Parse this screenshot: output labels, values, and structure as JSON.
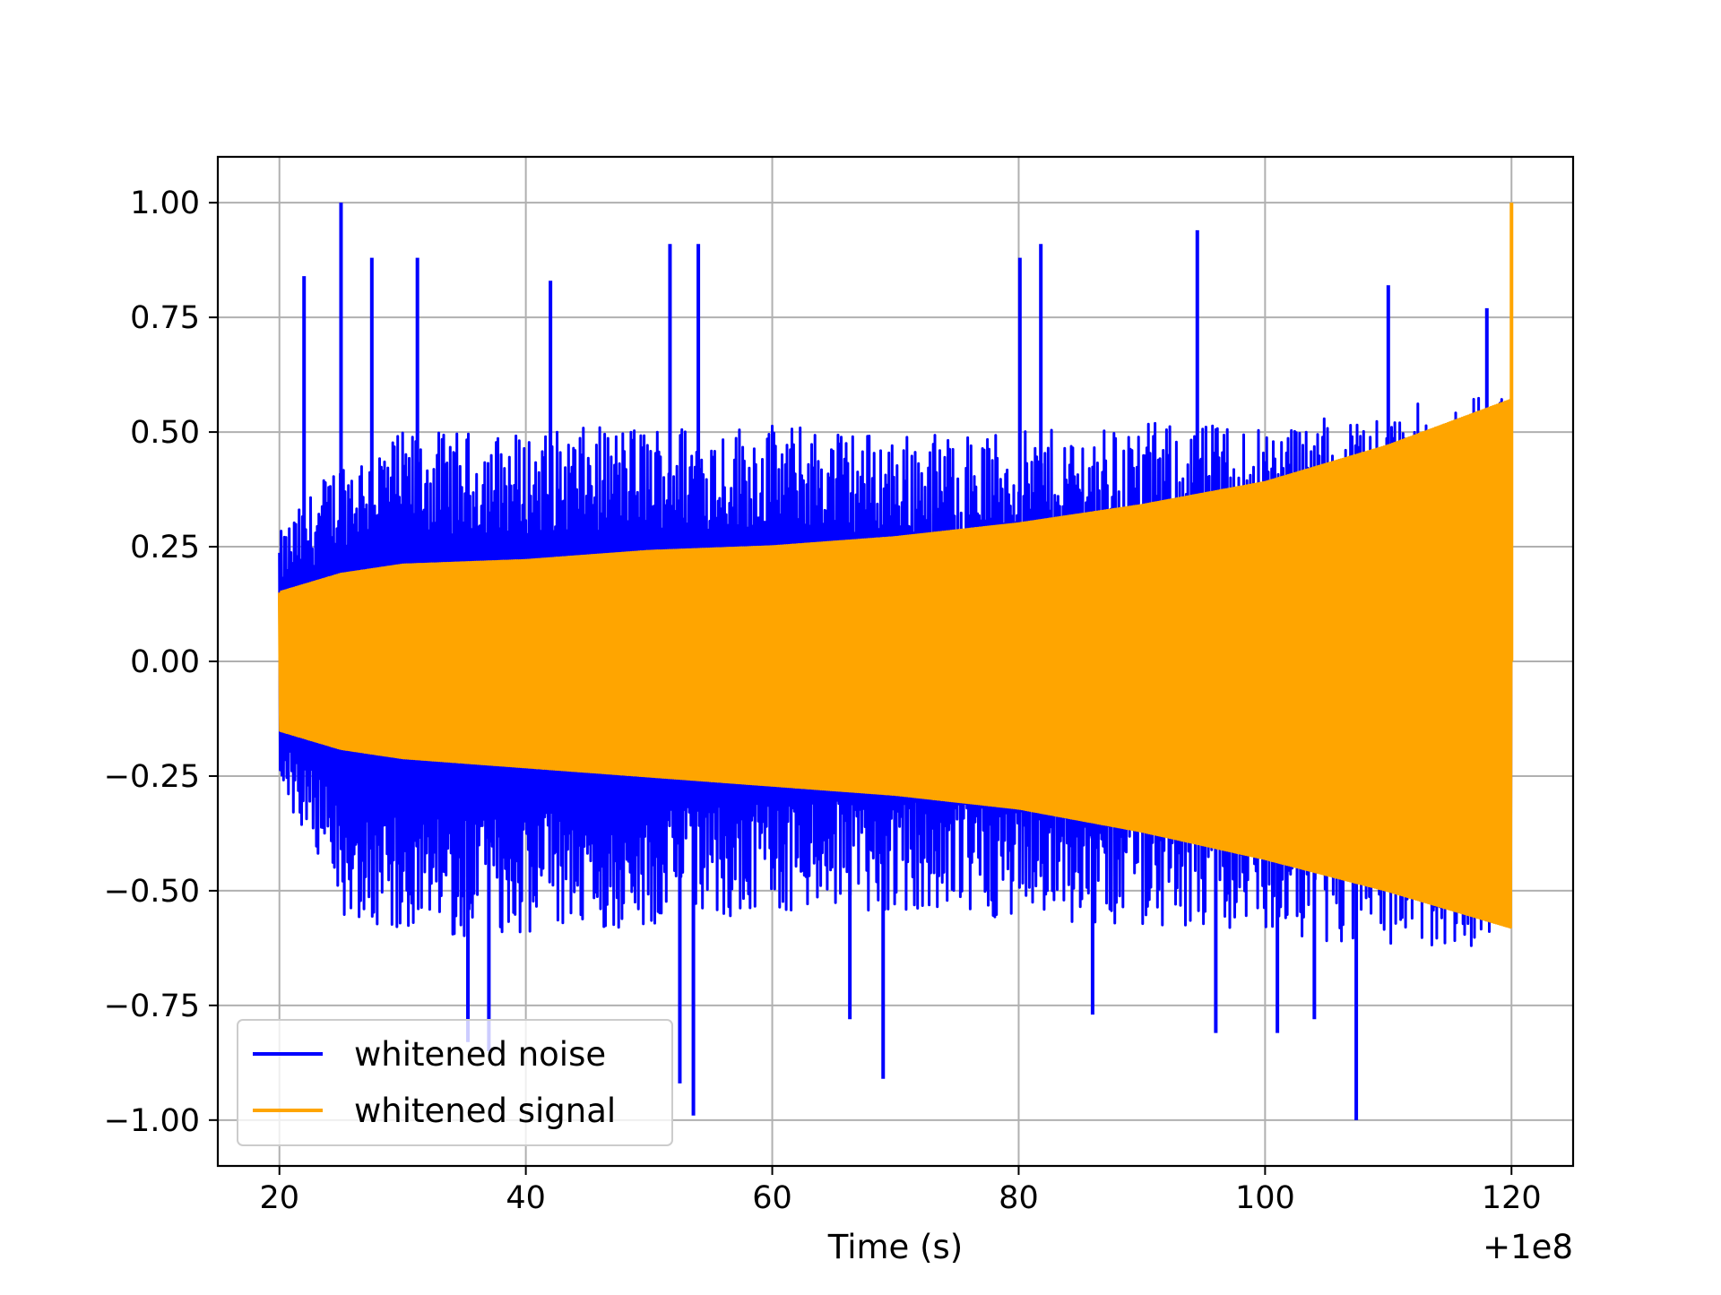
{
  "chart_data": {
    "type": "line",
    "xlabel": "Time (s)",
    "ylabel": "",
    "title": "",
    "x_offset_label": "+1e8",
    "xlim": [
      15,
      125
    ],
    "ylim": [
      -1.1,
      1.1
    ],
    "x_ticks": [
      {
        "value": 20,
        "label": "20"
      },
      {
        "value": 40,
        "label": "40"
      },
      {
        "value": 60,
        "label": "60"
      },
      {
        "value": 80,
        "label": "80"
      },
      {
        "value": 100,
        "label": "100"
      },
      {
        "value": 120,
        "label": "120"
      }
    ],
    "y_ticks": [
      {
        "value": 1.0,
        "label": "1.00"
      },
      {
        "value": 0.75,
        "label": "0.75"
      },
      {
        "value": 0.5,
        "label": "0.50"
      },
      {
        "value": 0.25,
        "label": "0.25"
      },
      {
        "value": 0.0,
        "label": "0.00"
      },
      {
        "value": -0.25,
        "label": "−0.25"
      },
      {
        "value": -0.5,
        "label": "−0.50"
      },
      {
        "value": -0.75,
        "label": "−0.75"
      },
      {
        "value": -1.0,
        "label": "−1.00"
      }
    ],
    "grid": true,
    "legend_position": "lower-left",
    "series": [
      {
        "name": "whitened noise",
        "color": "#0000ff",
        "x_range": [
          20,
          120
        ],
        "envelope_upper": [
          [
            20,
            0.28
          ],
          [
            25,
            0.45
          ],
          [
            30,
            0.5
          ],
          [
            40,
            0.5
          ],
          [
            50,
            0.52
          ],
          [
            60,
            0.52
          ],
          [
            70,
            0.5
          ],
          [
            80,
            0.5
          ],
          [
            90,
            0.52
          ],
          [
            100,
            0.52
          ],
          [
            110,
            0.55
          ],
          [
            120,
            0.6
          ]
        ],
        "envelope_lower": [
          [
            20,
            -0.28
          ],
          [
            25,
            -0.55
          ],
          [
            30,
            -0.6
          ],
          [
            40,
            -0.6
          ],
          [
            50,
            -0.58
          ],
          [
            60,
            -0.55
          ],
          [
            70,
            -0.55
          ],
          [
            80,
            -0.56
          ],
          [
            90,
            -0.58
          ],
          [
            100,
            -0.6
          ],
          [
            110,
            -0.62
          ],
          [
            120,
            -0.62
          ]
        ],
        "peaks": [
          [
            25.0,
            1.0
          ],
          [
            107.4,
            -1.0
          ],
          [
            53.6,
            -0.99
          ],
          [
            69.0,
            -0.91
          ],
          [
            51.7,
            0.91
          ],
          [
            54.0,
            0.91
          ],
          [
            94.5,
            0.94
          ],
          [
            81.8,
            0.91
          ],
          [
            80.1,
            0.88
          ],
          [
            27.5,
            0.88
          ],
          [
            22.0,
            0.84
          ],
          [
            31.2,
            0.88
          ],
          [
            42.0,
            0.83
          ],
          [
            35.3,
            -0.83
          ],
          [
            37.0,
            -0.85
          ],
          [
            52.5,
            -0.92
          ],
          [
            66.3,
            -0.78
          ],
          [
            86.0,
            -0.77
          ],
          [
            96.0,
            -0.81
          ],
          [
            101.0,
            -0.81
          ],
          [
            104.0,
            -0.78
          ],
          [
            118.0,
            0.77
          ],
          [
            110.0,
            0.82
          ]
        ]
      },
      {
        "name": "whitened signal",
        "color": "#ffa500",
        "x_range": [
          20,
          120
        ],
        "envelope_upper": [
          [
            20,
            0.15
          ],
          [
            25,
            0.19
          ],
          [
            30,
            0.21
          ],
          [
            40,
            0.22
          ],
          [
            50,
            0.24
          ],
          [
            60,
            0.25
          ],
          [
            70,
            0.27
          ],
          [
            80,
            0.3
          ],
          [
            90,
            0.34
          ],
          [
            100,
            0.39
          ],
          [
            110,
            0.47
          ],
          [
            120,
            0.57
          ]
        ],
        "envelope_lower": [
          [
            20,
            -0.15
          ],
          [
            25,
            -0.19
          ],
          [
            30,
            -0.21
          ],
          [
            40,
            -0.23
          ],
          [
            50,
            -0.25
          ],
          [
            60,
            -0.27
          ],
          [
            70,
            -0.29
          ],
          [
            80,
            -0.32
          ],
          [
            90,
            -0.37
          ],
          [
            100,
            -0.43
          ],
          [
            110,
            -0.5
          ],
          [
            120,
            -0.58
          ]
        ],
        "peaks": [
          [
            120.0,
            1.0
          ]
        ]
      }
    ]
  }
}
